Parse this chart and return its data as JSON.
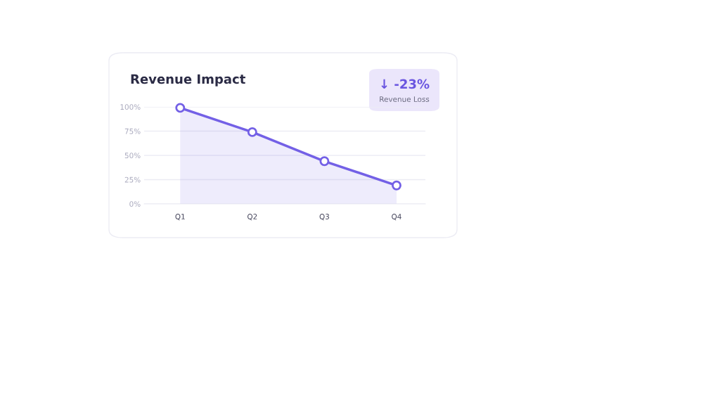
{
  "chart_data": {
    "type": "area",
    "title": "Revenue Impact",
    "categories": [
      "Q1",
      "Q2",
      "Q3",
      "Q4"
    ],
    "series": [
      {
        "color": "#7360e6",
        "values": [
          99,
          74,
          44,
          19
        ]
      }
    ],
    "ylim": [
      0,
      100
    ],
    "yticks": [
      {
        "value": 0,
        "label": "0%"
      },
      {
        "value": 25,
        "label": "25%"
      },
      {
        "value": 50,
        "label": "50%"
      },
      {
        "value": 75,
        "label": "75%"
      },
      {
        "value": 100,
        "label": "100%"
      }
    ],
    "grid": "y",
    "marker": "circle",
    "annotations": [
      "↓ -23%",
      "Revenue Loss"
    ]
  }
}
